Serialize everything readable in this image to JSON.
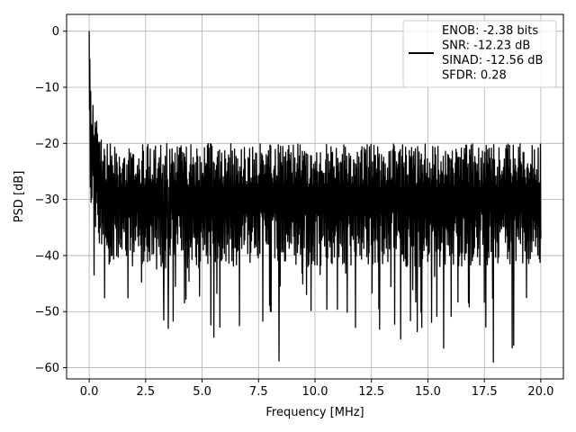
{
  "chart_data": {
    "type": "line",
    "title": "",
    "xlabel": "Frequency [MHz]",
    "ylabel": "PSD [dB]",
    "xlim": [
      -1.0,
      21.0
    ],
    "ylim": [
      -62.0,
      3.0
    ],
    "x_ticks": [
      0.0,
      2.5,
      5.0,
      7.5,
      10.0,
      12.5,
      15.0,
      17.5,
      20.0
    ],
    "x_tick_labels": [
      "0.0",
      "2.5",
      "5.0",
      "7.5",
      "10.0",
      "12.5",
      "15.0",
      "17.5",
      "20.0"
    ],
    "y_ticks": [
      0,
      -10,
      -20,
      -30,
      -40,
      -50,
      -60
    ],
    "y_tick_labels": [
      "0",
      "−10",
      "−20",
      "−30",
      "−40",
      "−50",
      "−60"
    ],
    "grid": true,
    "legend_position": "top-right",
    "line_color": "#000000",
    "legend_lines": [
      "ENOB: -2.38 bits",
      "SNR: -12.23 dB",
      "SINAD: -12.56 dB",
      "SFDR: 0.28"
    ],
    "series": [
      {
        "x_start": 0.0,
        "x_end": 20.0,
        "points": 1200,
        "peak_value": 0.0,
        "noise_floor_mean": -30.0,
        "noise_upper_envelope": -20.0,
        "lowest_dips": [
          {
            "x": 3.3,
            "y": -51.5
          },
          {
            "x": 3.5,
            "y": -53.0
          },
          {
            "x": 6.65,
            "y": -52.5
          },
          {
            "x": 8.4,
            "y": -58.8
          },
          {
            "x": 15.7,
            "y": -56.5
          },
          {
            "x": 17.9,
            "y": -59.0
          },
          {
            "x": 18.8,
            "y": -56.0
          }
        ]
      }
    ]
  }
}
